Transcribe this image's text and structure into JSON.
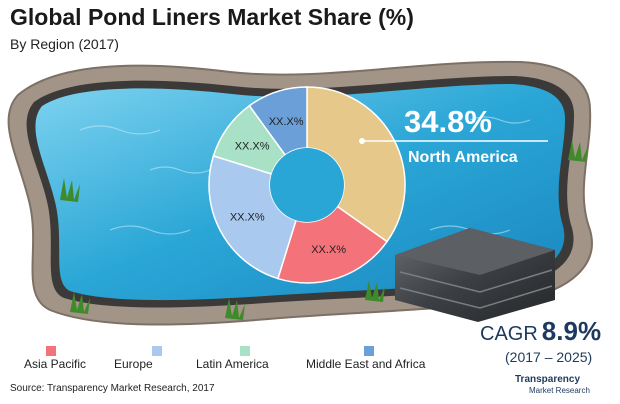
{
  "title": "Global Pond Liners Market Share (%)",
  "subtitle": "By Region (2017)",
  "highlight": {
    "value": "34.8%",
    "label": "North America"
  },
  "cagr": {
    "label": "CAGR",
    "value": "8.9%",
    "period": "(2017 – 2025)"
  },
  "source": "Source: Transparency Market Research, 2017",
  "logo": {
    "line1": "Transparency",
    "line2": "Market Research"
  },
  "colors": {
    "north_america": "#e6c98a",
    "asia_pacific": "#f4737b",
    "europe": "#a9c9ef",
    "latin_america": "#a8e1c6",
    "mea": "#6a9fd8",
    "water": "#2aa6d6",
    "rock": "#a39488"
  },
  "chart_data": {
    "type": "pie",
    "donut": true,
    "categories": [
      "North America",
      "Asia Pacific",
      "Europe",
      "Latin America",
      "Middle East and Africa"
    ],
    "values": [
      34.8,
      20.0,
      25.0,
      10.2,
      10.0
    ],
    "labels": [
      "",
      "XX.X%",
      "XX.X%",
      "XX.X%",
      "XX.X%"
    ],
    "colors": [
      "#e6c98a",
      "#f4737b",
      "#a9c9ef",
      "#a8e1c6",
      "#6a9fd8"
    ],
    "legend": [
      "Asia Pacific",
      "Europe",
      "Latin America",
      "Middle East and Africa"
    ],
    "legend_colors": [
      "#f4737b",
      "#a9c9ef",
      "#a8e1c6",
      "#6a9fd8"
    ],
    "legend_position": "bottom"
  }
}
